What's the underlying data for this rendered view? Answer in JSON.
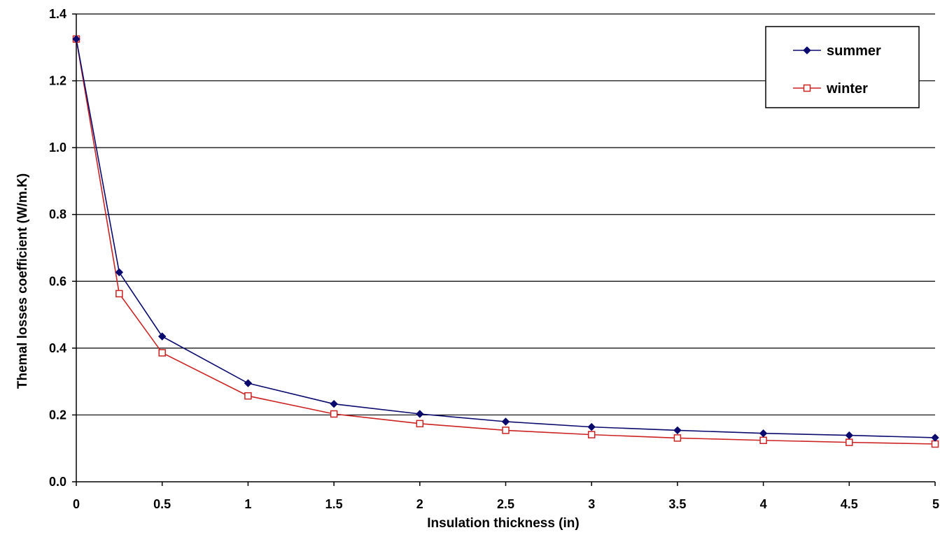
{
  "chart_data": {
    "type": "line",
    "title": "",
    "xlabel": "Insulation thickness (in)",
    "ylabel": "Themal losses coefficient (W/m.K)",
    "x": [
      0,
      0.25,
      0.5,
      1,
      1.5,
      2,
      2.5,
      3,
      3.5,
      4,
      4.5,
      5
    ],
    "x_tick_values": [
      0,
      0.5,
      1,
      1.5,
      2,
      2.5,
      3,
      3.5,
      4,
      4.5,
      5
    ],
    "x_tick_labels": [
      "0",
      "0.5",
      "1",
      "1.5",
      "2",
      "2.5",
      "3",
      "3.5",
      "4",
      "4.5",
      "5"
    ],
    "y_tick_values": [
      0,
      0.2,
      0.4,
      0.6,
      0.8,
      1.0,
      1.2,
      1.4
    ],
    "y_tick_labels": [
      "0.0",
      "0.2",
      "0.4",
      "0.6",
      "0.8",
      "1.0",
      "1.2",
      "1.4"
    ],
    "xlim": [
      0,
      5
    ],
    "ylim": [
      0,
      1.4
    ],
    "grid": "horizontal",
    "legend_position": "top-right",
    "series": [
      {
        "name": "summer",
        "color": "#0a0a6e",
        "marker": "diamond",
        "values": [
          1.325,
          0.627,
          0.435,
          0.295,
          0.233,
          0.203,
          0.18,
          0.164,
          0.154,
          0.145,
          0.139,
          0.132
        ]
      },
      {
        "name": "winter",
        "color": "#cc2222",
        "marker": "square",
        "values": [
          1.325,
          0.563,
          0.386,
          0.257,
          0.203,
          0.174,
          0.154,
          0.141,
          0.131,
          0.124,
          0.118,
          0.113
        ]
      }
    ]
  }
}
